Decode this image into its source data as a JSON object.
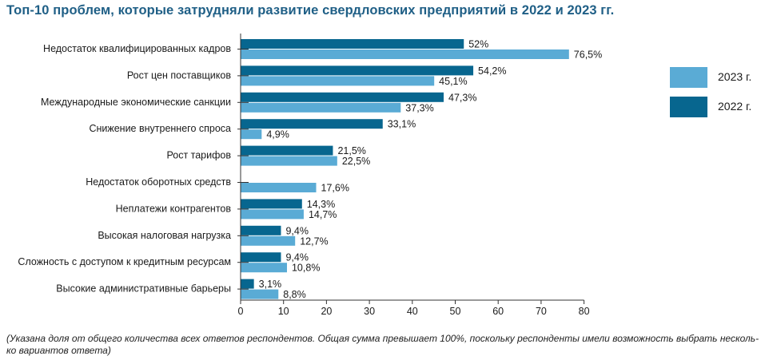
{
  "title": "Топ-10 проблем, которые затрудняли развитие свердловских предприятий в 2022 и 2023 гг.",
  "footnote": "(Указана доля от общего количества всех ответов респондентов. Общая сумма превышает 100%, поскольку респонденты имели возможность выбрать несколь-ко вариантов ответа)",
  "colors": {
    "y2022": "#07668f",
    "y2023": "#5aabd5",
    "axis": "#333333",
    "title": "#1f5f86"
  },
  "legend": [
    {
      "label": "2023 г.",
      "series": "2023"
    },
    {
      "label": "2022 г.",
      "series": "2022"
    }
  ],
  "chart_data": {
    "type": "bar",
    "orientation": "horizontal",
    "title": "Топ-10 проблем, которые затрудняли развитие свердловских предприятий в 2022 и 2023 гг.",
    "xlabel": "",
    "ylabel": "",
    "xlim": [
      0,
      80
    ],
    "xticks": [
      0,
      10,
      20,
      30,
      40,
      50,
      60,
      70,
      80
    ],
    "legend_position": "right",
    "categories": [
      "Недостаток квалифицированных кадров",
      "Рост цен поставщиков",
      "Международные экономические санкции",
      "Снижение внутреннего спроса",
      "Рост тарифов",
      "Недостаток оборотных средств",
      "Неплатежи контрагентов",
      "Высокая налоговая нагрузка",
      "Сложность с доступом к кредитным ресурсам",
      "Высокие административные барьеры"
    ],
    "series": [
      {
        "name": "2022 г.",
        "values": [
          52,
          54.2,
          47.3,
          33.1,
          21.5,
          null,
          14.3,
          9.4,
          9.4,
          3.1
        ],
        "labels": [
          "52%",
          "54,2%",
          "47,3%",
          "33,1%",
          "21,5%",
          "",
          "14,3%",
          "9,4%",
          "9,4%",
          "3,1%"
        ]
      },
      {
        "name": "2023 г.",
        "values": [
          76.5,
          45.1,
          37.3,
          4.9,
          22.5,
          17.6,
          14.7,
          12.7,
          10.8,
          8.8
        ],
        "labels": [
          "76,5%",
          "45,1%",
          "37,3%",
          "4,9%",
          "22,5%",
          "17,6%",
          "14,7%",
          "12,7%",
          "10,8%",
          "8,8%"
        ]
      }
    ]
  }
}
